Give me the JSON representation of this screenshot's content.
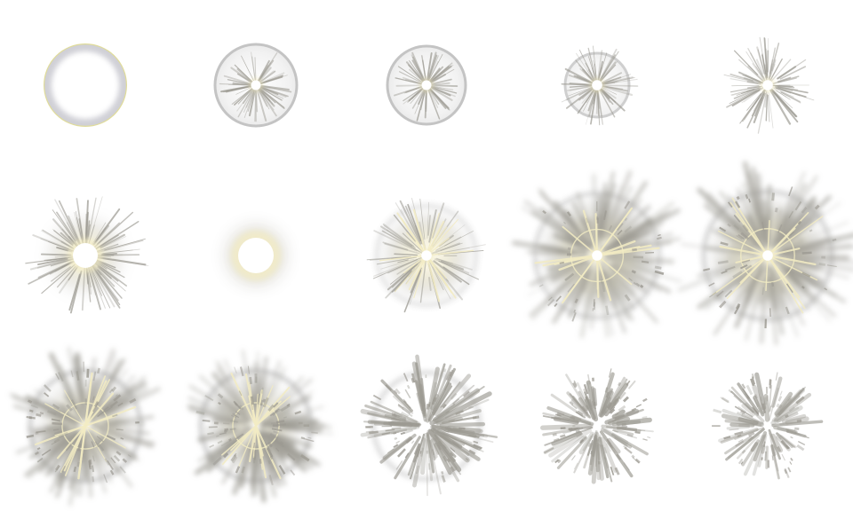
{
  "sprite_sheet": {
    "columns": 5,
    "rows": 3,
    "frame_count": 15,
    "colors": {
      "background": "#ffffff",
      "ring_gray": "#c4c4c4",
      "ring_light": "#ebebeb",
      "ray_gray": "#9c9a92",
      "glow_cream": "#f3ecc4",
      "core_white": "#ffffff",
      "ring_yellow": "#e0dc9a"
    },
    "frames": [
      {
        "name": "ring-thin-frame",
        "ring": 1.0,
        "rays": 0.0,
        "glow": 0.0,
        "core": 0.0,
        "debris": 0.0
      },
      {
        "name": "disc-striated-frame",
        "ring": 1.0,
        "rays": 0.35,
        "glow": 0.0,
        "core": 0.25,
        "debris": 0.0
      },
      {
        "name": "disc-striated-frame-2",
        "ring": 1.0,
        "rays": 0.35,
        "glow": 0.0,
        "core": 0.25,
        "debris": 0.0
      },
      {
        "name": "disc-spiky-frame",
        "ring": 0.8,
        "rays": 0.6,
        "glow": 0.0,
        "core": 0.3,
        "debris": 0.0
      },
      {
        "name": "spiky-burst-frame",
        "ring": 0.0,
        "rays": 0.8,
        "glow": 0.0,
        "core": 0.3,
        "debris": 0.0
      },
      {
        "name": "star-burst-frame",
        "ring": 0.0,
        "rays": 0.9,
        "glow": 0.5,
        "core": 0.6,
        "debris": 0.0
      },
      {
        "name": "glow-orb-frame",
        "ring": 0.0,
        "rays": 0.0,
        "glow": 1.0,
        "core": 0.9,
        "debris": 0.0
      },
      {
        "name": "haze-cross-frame",
        "ring": 0.4,
        "rays": 0.5,
        "glow": 0.6,
        "core": 0.3,
        "debris": 0.0
      },
      {
        "name": "explosion-frame",
        "ring": 0.6,
        "rays": 1.0,
        "glow": 0.7,
        "core": 0.3,
        "debris": 0.3
      },
      {
        "name": "explosion-frame-2",
        "ring": 0.7,
        "rays": 1.0,
        "glow": 0.7,
        "core": 0.3,
        "debris": 0.4
      },
      {
        "name": "debris-cloud-frame",
        "ring": 0.8,
        "rays": 1.0,
        "glow": 0.5,
        "core": 0.0,
        "debris": 0.7
      },
      {
        "name": "debris-cloud-frame-2",
        "ring": 0.8,
        "rays": 0.9,
        "glow": 0.4,
        "core": 0.0,
        "debris": 0.8
      },
      {
        "name": "shard-ring-frame",
        "ring": 0.6,
        "rays": 0.7,
        "glow": 0.0,
        "core": 0.0,
        "debris": 0.9
      },
      {
        "name": "shard-scatter-frame",
        "ring": 0.0,
        "rays": 0.5,
        "glow": 0.0,
        "core": 0.0,
        "debris": 0.8
      },
      {
        "name": "shard-fade-frame",
        "ring": 0.0,
        "rays": 0.35,
        "glow": 0.0,
        "core": 0.0,
        "debris": 0.6
      }
    ]
  }
}
